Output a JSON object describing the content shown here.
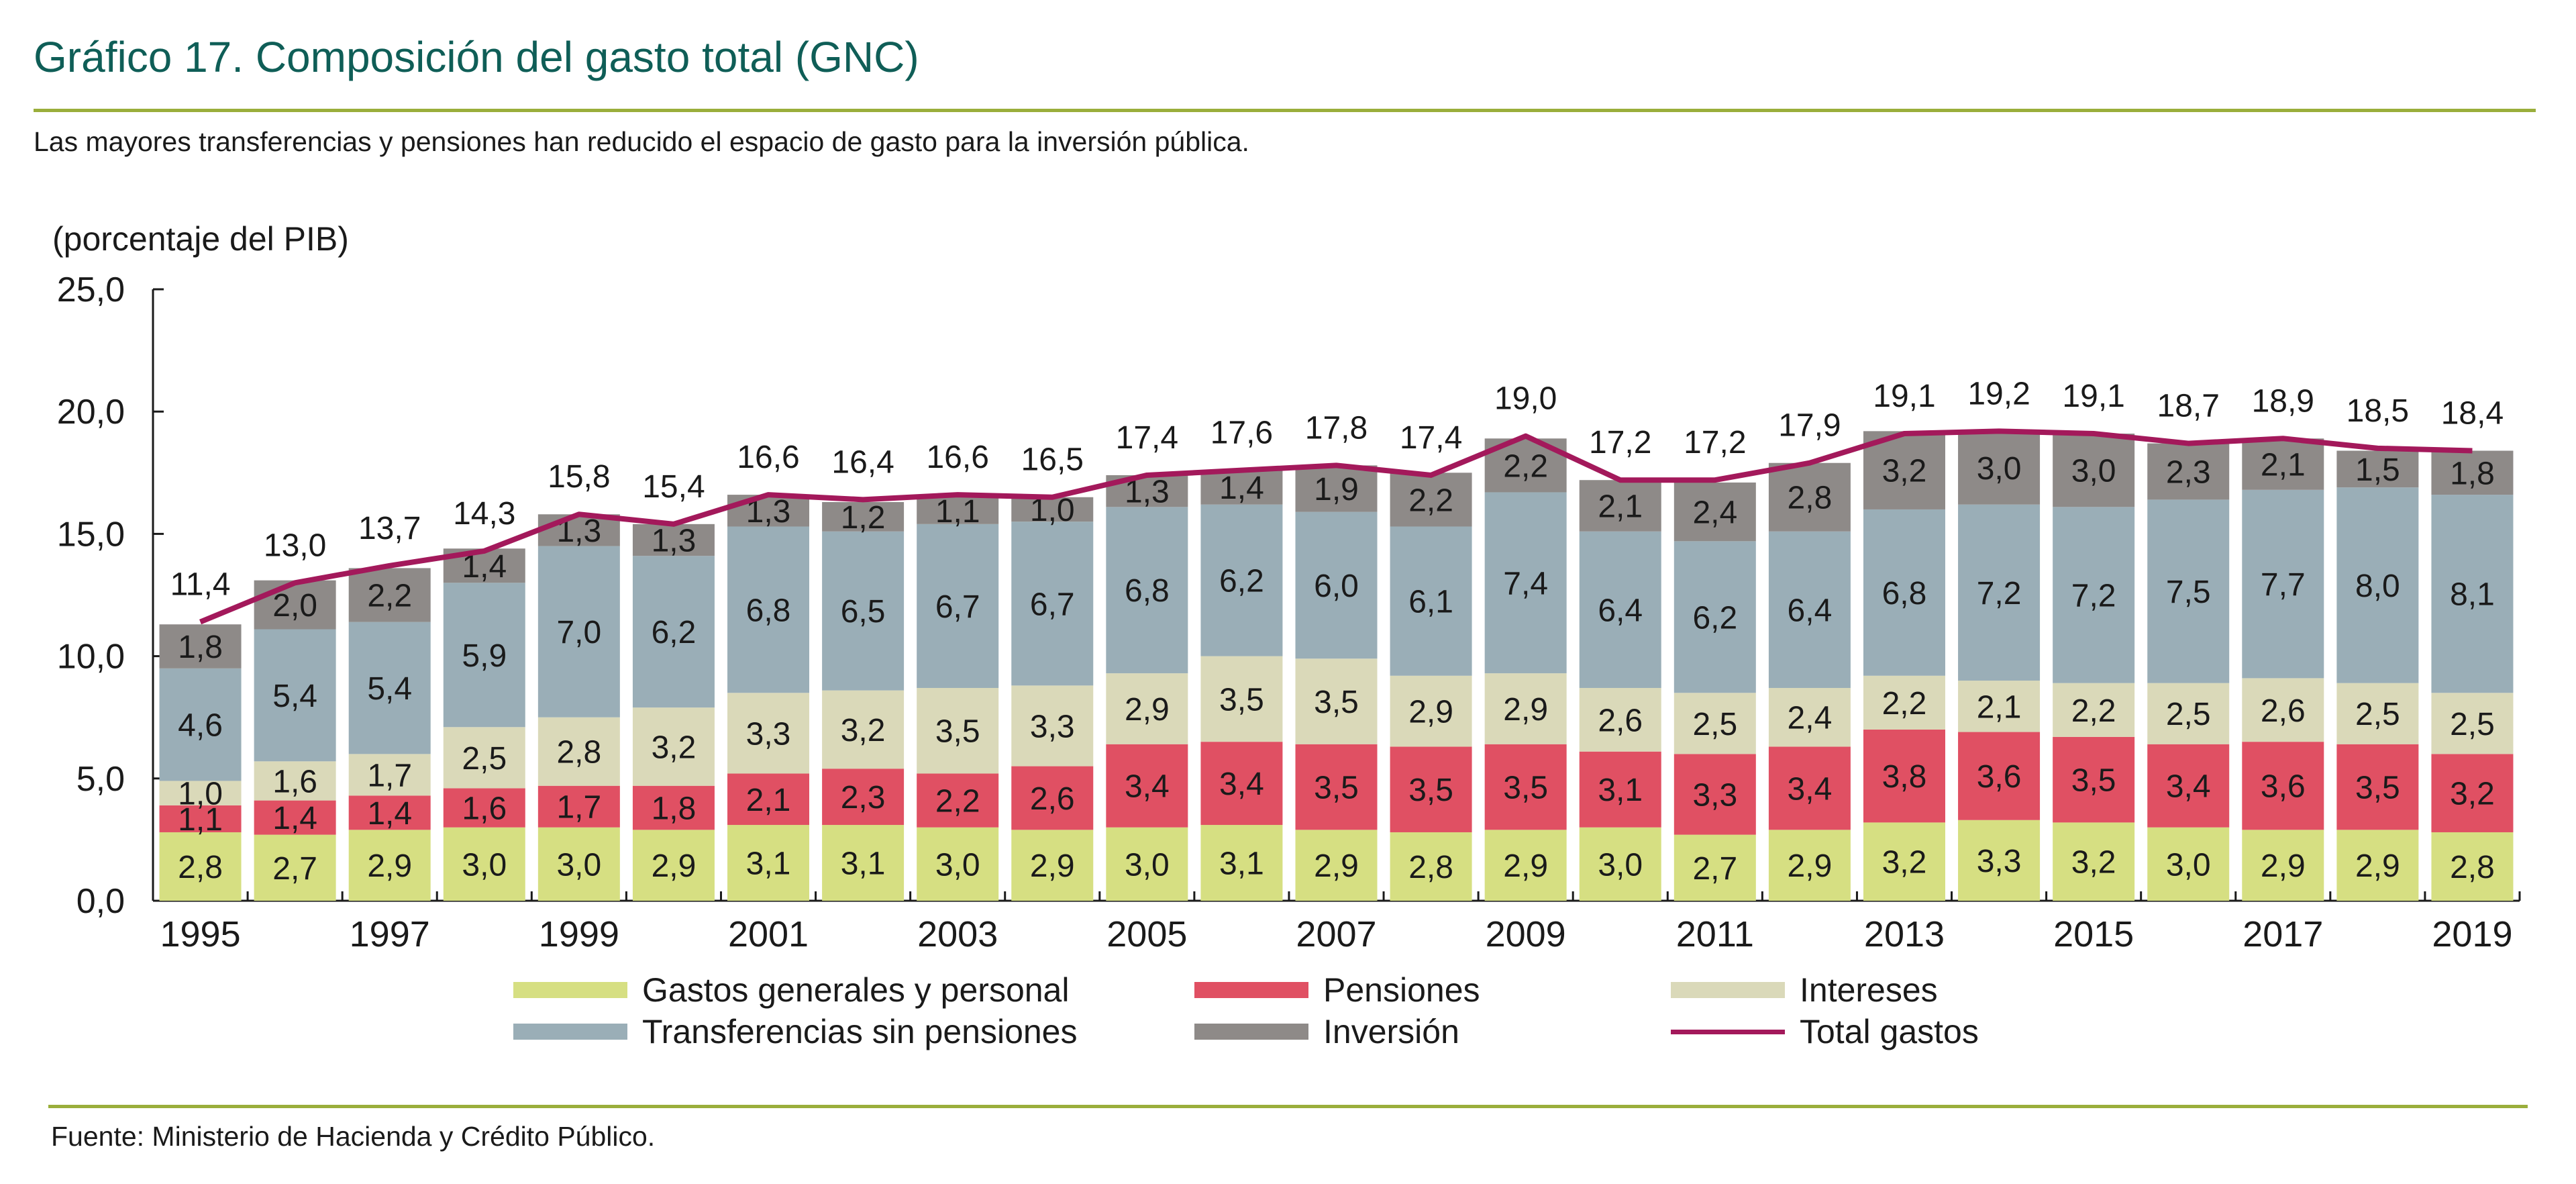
{
  "header": {
    "title": "Gráfico 17. Composición del gasto total (GNC)",
    "subtitle": "Las mayores transferencias y pensiones han reducido el espacio de gasto para la inversión pública."
  },
  "footer": {
    "source": "Fuente: Ministerio de Hacienda y Crédito Público."
  },
  "colors": {
    "title": "#0f5e57",
    "rule": "#9aae3b",
    "gastos": "#d6df82",
    "pensiones": "#e05063",
    "intereses": "#dad9b9",
    "transferencias": "#9aaeb7",
    "inversion": "#8e8a88",
    "total": "#a3195b"
  },
  "chart_data": {
    "type": "bar",
    "stacked": true,
    "title": "Gráfico 17. Composición del gasto total (GNC)",
    "ylabel": "(porcentaje del PIB)",
    "xlabel": "",
    "ylim": [
      0,
      25
    ],
    "yticks": [
      "0,0",
      "5,0",
      "10,0",
      "15,0",
      "20,0",
      "25,0"
    ],
    "ytick_values": [
      0,
      5,
      10,
      15,
      20,
      25
    ],
    "grid": false,
    "legend_position": "bottom",
    "categories": [
      "1995",
      "1996",
      "1997",
      "1998",
      "1999",
      "2000",
      "2001",
      "2002",
      "2003",
      "2004",
      "2005",
      "2006",
      "2007",
      "2008",
      "2009",
      "2010",
      "2011",
      "2012",
      "2013",
      "2014",
      "2015",
      "2016",
      "2017",
      "2018",
      "2019"
    ],
    "xtick_labels_shown": [
      "1995",
      "1997",
      "1999",
      "2001",
      "2003",
      "2005",
      "2007",
      "2009",
      "2011",
      "2013",
      "2015",
      "2017",
      "2019"
    ],
    "series": [
      {
        "key": "gastos",
        "name": "Gastos generales y personal",
        "type": "bar",
        "values": [
          2.8,
          2.7,
          2.9,
          3.0,
          3.0,
          2.9,
          3.1,
          3.1,
          3.0,
          2.9,
          3.0,
          3.1,
          2.9,
          2.8,
          2.9,
          3.0,
          2.7,
          2.9,
          3.2,
          3.3,
          3.2,
          3.0,
          2.9,
          2.9,
          2.8
        ]
      },
      {
        "key": "pensiones",
        "name": "Pensiones",
        "type": "bar",
        "values": [
          1.1,
          1.4,
          1.4,
          1.6,
          1.7,
          1.8,
          2.1,
          2.3,
          2.2,
          2.6,
          3.4,
          3.4,
          3.5,
          3.5,
          3.5,
          3.1,
          3.3,
          3.4,
          3.8,
          3.6,
          3.5,
          3.4,
          3.6,
          3.5,
          3.2
        ]
      },
      {
        "key": "intereses",
        "name": "Intereses",
        "type": "bar",
        "values": [
          1.0,
          1.6,
          1.7,
          2.5,
          2.8,
          3.2,
          3.3,
          3.2,
          3.5,
          3.3,
          2.9,
          3.5,
          3.5,
          2.9,
          2.9,
          2.6,
          2.5,
          2.4,
          2.2,
          2.1,
          2.2,
          2.5,
          2.6,
          2.5,
          2.5
        ]
      },
      {
        "key": "transferencias",
        "name": "Transferencias sin pensiones",
        "type": "bar",
        "values": [
          4.6,
          5.4,
          5.4,
          5.9,
          7.0,
          6.2,
          6.8,
          6.5,
          6.7,
          6.7,
          6.8,
          6.2,
          6.0,
          6.1,
          7.4,
          6.4,
          6.2,
          6.4,
          6.8,
          7.2,
          7.2,
          7.5,
          7.7,
          8.0,
          8.1
        ]
      },
      {
        "key": "inversion",
        "name": "Inversión",
        "type": "bar",
        "values": [
          1.8,
          2.0,
          2.2,
          1.4,
          1.3,
          1.3,
          1.3,
          1.2,
          1.1,
          1.0,
          1.3,
          1.4,
          1.9,
          2.2,
          2.2,
          2.1,
          2.4,
          2.8,
          3.2,
          3.0,
          3.0,
          2.3,
          2.1,
          1.5,
          1.8
        ]
      },
      {
        "key": "total",
        "name": "Total gastos",
        "type": "line",
        "values": [
          11.4,
          13.0,
          13.7,
          14.3,
          15.8,
          15.4,
          16.6,
          16.4,
          16.6,
          16.5,
          17.4,
          17.6,
          17.8,
          17.4,
          19.0,
          17.2,
          17.2,
          17.9,
          19.1,
          19.2,
          19.1,
          18.7,
          18.9,
          18.5,
          18.4
        ]
      }
    ],
    "legend": [
      {
        "key": "gastos",
        "label": "Gastos generales y personal",
        "symbol": "box"
      },
      {
        "key": "pensiones",
        "label": "Pensiones",
        "symbol": "box"
      },
      {
        "key": "intereses",
        "label": "Intereses",
        "symbol": "box"
      },
      {
        "key": "transferencias",
        "label": "Transferencias sin pensiones",
        "symbol": "box"
      },
      {
        "key": "inversion",
        "label": "Inversión",
        "symbol": "box"
      },
      {
        "key": "total",
        "label": "Total gastos",
        "symbol": "line"
      }
    ],
    "decimal_separator": ","
  }
}
